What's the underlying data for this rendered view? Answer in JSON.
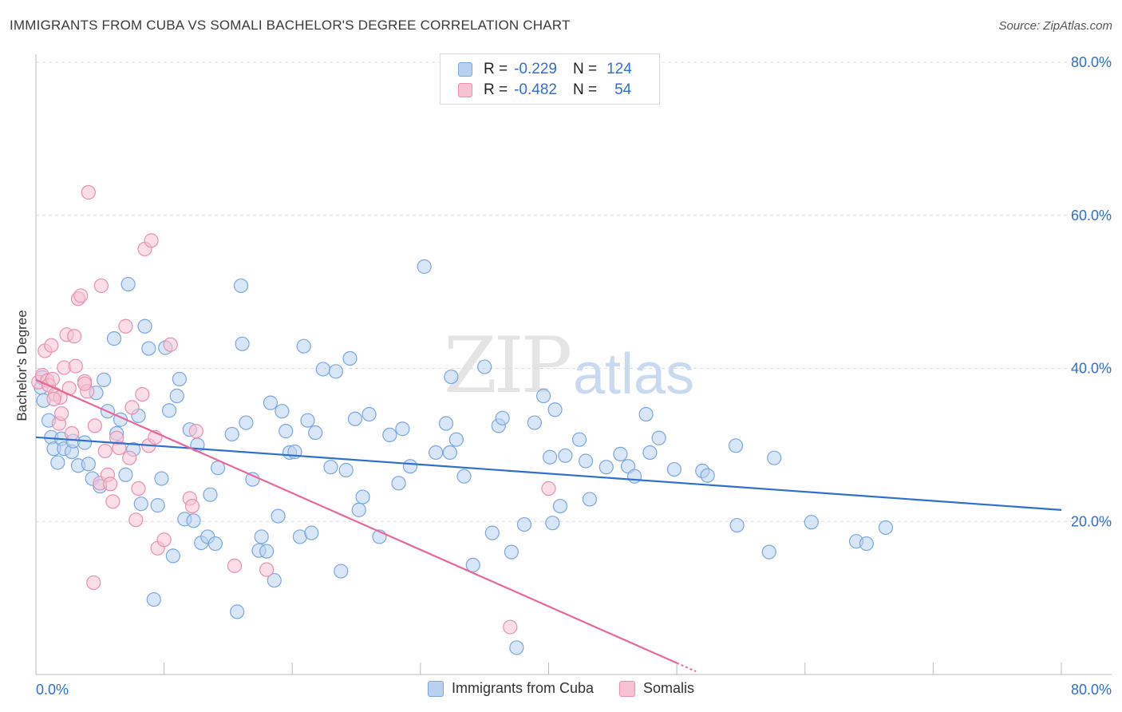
{
  "title": "IMMIGRANTS FROM CUBA VS SOMALI BACHELOR'S DEGREE CORRELATION CHART",
  "source": "Source: ZipAtlas.com",
  "watermark": {
    "zip": "ZIP",
    "atlas": "atlas"
  },
  "legend_top": [
    {
      "r_label": "R =",
      "r_value": "-0.229",
      "n_label": "N =",
      "n_value": "124"
    },
    {
      "r_label": "R =",
      "r_value": "-0.482",
      "n_label": "N =",
      "n_value": "54"
    }
  ],
  "legend_bottom": [
    {
      "label": "Immigrants from Cuba"
    },
    {
      "label": "Somalis"
    }
  ],
  "colors": {
    "blue_fill": "#b9d1f1",
    "blue_stroke": "#7aa6df",
    "blue_line": "#2f6fd0",
    "pink_fill": "#f7c3d3",
    "pink_stroke": "#ea8fae",
    "pink_line": "#e8679a",
    "tick_label": "#2f6fd0",
    "grid": "#dcdcdc"
  },
  "chart_data": {
    "type": "scatter",
    "title": "IMMIGRANTS FROM CUBA VS SOMALI BACHELOR'S DEGREE CORRELATION CHART",
    "xlabel": "",
    "ylabel": "Bachelor's Degree",
    "xlim": [
      0,
      80
    ],
    "ylim": [
      0,
      80
    ],
    "x_tick_labels": [
      "0.0%",
      "80.0%"
    ],
    "y_ticks": [
      20,
      40,
      60,
      80
    ],
    "y_tick_labels": [
      "20.0%",
      "40.0%",
      "60.0%",
      "80.0%"
    ],
    "grid": true,
    "legend_position": "top-center",
    "series": [
      {
        "name": "Immigrants from Cuba",
        "trend": {
          "x0": 0,
          "y0": 31.0,
          "x1": 80,
          "y1": 21.5
        },
        "points": [
          [
            0.4,
            37.5
          ],
          [
            0.6,
            35.8
          ],
          [
            0.5,
            38.8
          ],
          [
            1.0,
            33.2
          ],
          [
            1.2,
            31.0
          ],
          [
            1.4,
            29.5
          ],
          [
            1.7,
            27.7
          ],
          [
            2.0,
            30.8
          ],
          [
            2.2,
            29.5
          ],
          [
            2.8,
            29.1
          ],
          [
            2.9,
            30.5
          ],
          [
            3.3,
            27.3
          ],
          [
            3.8,
            30.3
          ],
          [
            4.1,
            27.5
          ],
          [
            4.4,
            25.6
          ],
          [
            4.7,
            36.8
          ],
          [
            5.0,
            24.6
          ],
          [
            5.3,
            38.5
          ],
          [
            5.6,
            34.4
          ],
          [
            6.1,
            43.9
          ],
          [
            6.3,
            31.5
          ],
          [
            6.6,
            33.3
          ],
          [
            7.0,
            26.1
          ],
          [
            7.2,
            51.0
          ],
          [
            7.6,
            29.4
          ],
          [
            8.0,
            33.8
          ],
          [
            8.2,
            22.3
          ],
          [
            8.5,
            45.5
          ],
          [
            8.8,
            42.6
          ],
          [
            9.2,
            9.8
          ],
          [
            9.5,
            22.1
          ],
          [
            9.8,
            25.6
          ],
          [
            10.1,
            42.7
          ],
          [
            10.4,
            34.5
          ],
          [
            10.7,
            15.5
          ],
          [
            11.0,
            36.4
          ],
          [
            11.2,
            38.6
          ],
          [
            11.6,
            20.3
          ],
          [
            12.0,
            32.0
          ],
          [
            12.3,
            20.1
          ],
          [
            12.6,
            30.0
          ],
          [
            12.9,
            17.2
          ],
          [
            13.4,
            18.0
          ],
          [
            13.6,
            23.5
          ],
          [
            14.0,
            17.1
          ],
          [
            14.2,
            27.0
          ],
          [
            15.3,
            31.4
          ],
          [
            15.7,
            8.2
          ],
          [
            16.0,
            50.8
          ],
          [
            16.1,
            43.2
          ],
          [
            16.4,
            32.9
          ],
          [
            16.9,
            25.5
          ],
          [
            17.4,
            16.2
          ],
          [
            17.6,
            18.0
          ],
          [
            18.0,
            16.1
          ],
          [
            18.3,
            35.5
          ],
          [
            18.6,
            12.3
          ],
          [
            18.9,
            20.7
          ],
          [
            19.2,
            34.4
          ],
          [
            19.5,
            31.8
          ],
          [
            19.8,
            29.0
          ],
          [
            20.2,
            29.1
          ],
          [
            20.6,
            18.0
          ],
          [
            20.9,
            42.9
          ],
          [
            21.2,
            33.2
          ],
          [
            21.5,
            18.5
          ],
          [
            21.8,
            31.6
          ],
          [
            22.4,
            39.9
          ],
          [
            23.0,
            27.1
          ],
          [
            23.4,
            39.6
          ],
          [
            23.8,
            13.5
          ],
          [
            24.2,
            26.7
          ],
          [
            24.5,
            41.3
          ],
          [
            24.9,
            33.4
          ],
          [
            25.2,
            21.5
          ],
          [
            25.5,
            23.2
          ],
          [
            26.0,
            34.0
          ],
          [
            26.8,
            18.0
          ],
          [
            27.6,
            31.3
          ],
          [
            28.3,
            25.0
          ],
          [
            28.6,
            32.1
          ],
          [
            29.2,
            27.2
          ],
          [
            30.3,
            53.3
          ],
          [
            31.2,
            29.0
          ],
          [
            32.0,
            32.8
          ],
          [
            32.4,
            38.9
          ],
          [
            32.3,
            29.0
          ],
          [
            32.8,
            30.7
          ],
          [
            33.4,
            25.9
          ],
          [
            34.1,
            14.3
          ],
          [
            35.0,
            40.2
          ],
          [
            35.6,
            18.5
          ],
          [
            36.1,
            32.5
          ],
          [
            36.4,
            33.5
          ],
          [
            37.1,
            16.0
          ],
          [
            38.1,
            19.6
          ],
          [
            38.9,
            32.9
          ],
          [
            39.6,
            36.4
          ],
          [
            40.1,
            28.4
          ],
          [
            40.5,
            34.6
          ],
          [
            40.3,
            19.8
          ],
          [
            40.9,
            22.0
          ],
          [
            41.3,
            28.6
          ],
          [
            42.4,
            30.7
          ],
          [
            42.9,
            27.9
          ],
          [
            43.2,
            22.9
          ],
          [
            44.5,
            27.1
          ],
          [
            45.6,
            28.8
          ],
          [
            46.2,
            27.2
          ],
          [
            46.7,
            25.9
          ],
          [
            47.6,
            34.0
          ],
          [
            47.9,
            29.0
          ],
          [
            48.6,
            30.9
          ],
          [
            49.8,
            26.8
          ],
          [
            52.0,
            26.6
          ],
          [
            52.4,
            26.0
          ],
          [
            54.6,
            29.9
          ],
          [
            54.7,
            19.5
          ],
          [
            57.2,
            16.0
          ],
          [
            57.6,
            28.3
          ],
          [
            60.5,
            19.9
          ],
          [
            64.0,
            17.4
          ],
          [
            64.8,
            17.1
          ],
          [
            66.3,
            19.2
          ],
          [
            37.5,
            3.5
          ]
        ]
      },
      {
        "name": "Somalis",
        "trend": {
          "x0": 0,
          "y0": 38.5,
          "x1": 50,
          "y1": 1.5
        },
        "points": [
          [
            0.2,
            38.2
          ],
          [
            0.5,
            39.1
          ],
          [
            0.7,
            42.3
          ],
          [
            0.9,
            38.4
          ],
          [
            1.0,
            37.8
          ],
          [
            1.2,
            43.0
          ],
          [
            1.3,
            38.6
          ],
          [
            1.5,
            36.6
          ],
          [
            1.8,
            32.8
          ],
          [
            1.9,
            36.2
          ],
          [
            2.2,
            40.1
          ],
          [
            2.4,
            44.4
          ],
          [
            2.6,
            37.4
          ],
          [
            2.8,
            31.5
          ],
          [
            3.0,
            44.2
          ],
          [
            3.1,
            40.3
          ],
          [
            3.3,
            49.1
          ],
          [
            3.5,
            49.5
          ],
          [
            3.8,
            38.3
          ],
          [
            4.0,
            37.0
          ],
          [
            4.1,
            63.0
          ],
          [
            4.5,
            12.0
          ],
          [
            4.6,
            32.5
          ],
          [
            5.0,
            25.0
          ],
          [
            5.1,
            50.8
          ],
          [
            5.4,
            29.2
          ],
          [
            5.6,
            26.1
          ],
          [
            5.8,
            24.9
          ],
          [
            6.0,
            22.6
          ],
          [
            6.3,
            30.9
          ],
          [
            6.5,
            29.6
          ],
          [
            7.0,
            45.5
          ],
          [
            7.3,
            28.3
          ],
          [
            7.5,
            34.9
          ],
          [
            7.8,
            20.2
          ],
          [
            8.0,
            24.3
          ],
          [
            8.3,
            36.6
          ],
          [
            8.5,
            55.6
          ],
          [
            8.8,
            29.9
          ],
          [
            9.0,
            56.7
          ],
          [
            9.3,
            31.0
          ],
          [
            9.5,
            16.5
          ],
          [
            10.0,
            17.6
          ],
          [
            10.5,
            43.1
          ],
          [
            12.0,
            23.0
          ],
          [
            12.2,
            22.0
          ],
          [
            12.5,
            31.8
          ],
          [
            15.5,
            14.2
          ],
          [
            18.0,
            13.7
          ],
          [
            40.0,
            24.3
          ],
          [
            37.0,
            6.2
          ],
          [
            3.8,
            38.0
          ],
          [
            1.4,
            36.0
          ],
          [
            2.0,
            34.1
          ]
        ]
      }
    ]
  }
}
